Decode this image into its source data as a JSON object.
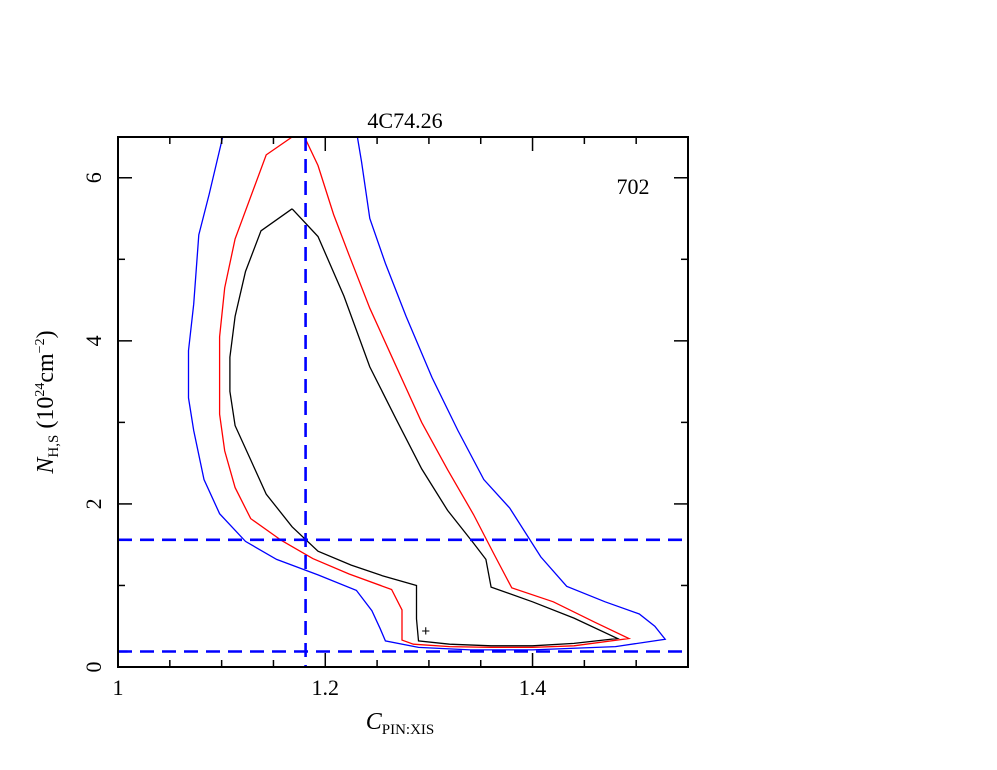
{
  "chart_data": {
    "type": "contour",
    "title": "4C74.26",
    "annotation": "702",
    "xlabel": {
      "main": "C",
      "sub": "PIN:XIS"
    },
    "ylabel": {
      "main": "N",
      "sub": "H,S",
      "rest_open": " (10",
      "sup1": "24",
      "rest_mid": "cm",
      "sup2": "−2",
      "rest_close": ")"
    },
    "xlim": [
      1.0,
      1.55
    ],
    "ylim": [
      0,
      6.5
    ],
    "xticks_major": [
      1.0,
      1.2,
      1.4
    ],
    "xtick_labels": [
      "1",
      "1.2",
      "1.4"
    ],
    "yticks_major": [
      0,
      2,
      4,
      6
    ],
    "ytick_labels": [
      "0",
      "2",
      "4",
      "6"
    ],
    "best_fit_marker": "+",
    "best_fit": {
      "x": 1.297,
      "y": 0.44
    },
    "reference_lines": {
      "color": "#0000ff",
      "vertical_x": [
        1.181
      ],
      "horizontal_y": [
        1.56,
        0.19
      ]
    },
    "series": [
      {
        "color": "#000000",
        "points": [
          [
            1.168,
            5.62
          ],
          [
            1.193,
            5.28
          ],
          [
            1.218,
            4.55
          ],
          [
            1.243,
            3.68
          ],
          [
            1.268,
            3.05
          ],
          [
            1.293,
            2.43
          ],
          [
            1.318,
            1.92
          ],
          [
            1.343,
            1.52
          ],
          [
            1.355,
            1.32
          ],
          [
            1.36,
            0.98
          ],
          [
            1.4,
            0.8
          ],
          [
            1.44,
            0.6
          ],
          [
            1.482,
            0.35
          ],
          [
            1.44,
            0.29
          ],
          [
            1.4,
            0.26
          ],
          [
            1.36,
            0.26
          ],
          [
            1.32,
            0.28
          ],
          [
            1.29,
            0.32
          ],
          [
            1.288,
            0.59
          ],
          [
            1.288,
            1.0
          ],
          [
            1.255,
            1.12
          ],
          [
            1.225,
            1.25
          ],
          [
            1.193,
            1.42
          ],
          [
            1.168,
            1.72
          ],
          [
            1.143,
            2.12
          ],
          [
            1.128,
            2.54
          ],
          [
            1.113,
            2.96
          ],
          [
            1.108,
            3.38
          ],
          [
            1.108,
            3.8
          ],
          [
            1.113,
            4.3
          ],
          [
            1.123,
            4.85
          ],
          [
            1.138,
            5.35
          ],
          [
            1.168,
            5.62
          ]
        ]
      },
      {
        "color": "#ff0000",
        "points": [
          [
            1.18,
            6.5
          ],
          [
            1.193,
            6.15
          ],
          [
            1.208,
            5.55
          ],
          [
            1.223,
            5.05
          ],
          [
            1.243,
            4.4
          ],
          [
            1.268,
            3.7
          ],
          [
            1.293,
            3.0
          ],
          [
            1.318,
            2.42
          ],
          [
            1.343,
            1.87
          ],
          [
            1.363,
            1.38
          ],
          [
            1.38,
            0.97
          ],
          [
            1.42,
            0.8
          ],
          [
            1.46,
            0.55
          ],
          [
            1.493,
            0.35
          ],
          [
            1.44,
            0.26
          ],
          [
            1.4,
            0.24
          ],
          [
            1.36,
            0.24
          ],
          [
            1.32,
            0.25
          ],
          [
            1.285,
            0.28
          ],
          [
            1.274,
            0.33
          ],
          [
            1.274,
            0.7
          ],
          [
            1.264,
            0.95
          ],
          [
            1.223,
            1.14
          ],
          [
            1.188,
            1.33
          ],
          [
            1.158,
            1.55
          ],
          [
            1.128,
            1.82
          ],
          [
            1.113,
            2.2
          ],
          [
            1.103,
            2.65
          ],
          [
            1.098,
            3.1
          ],
          [
            1.098,
            3.6
          ],
          [
            1.098,
            4.05
          ],
          [
            1.103,
            4.65
          ],
          [
            1.113,
            5.25
          ],
          [
            1.143,
            6.28
          ],
          [
            1.168,
            6.5
          ]
        ]
      },
      {
        "color": "#0000ff",
        "points": [
          [
            1.231,
            6.5
          ],
          [
            1.235,
            6.2
          ],
          [
            1.243,
            5.5
          ],
          [
            1.258,
            4.95
          ],
          [
            1.278,
            4.3
          ],
          [
            1.303,
            3.55
          ],
          [
            1.328,
            2.9
          ],
          [
            1.353,
            2.3
          ],
          [
            1.378,
            1.95
          ],
          [
            1.408,
            1.35
          ],
          [
            1.433,
            0.99
          ],
          [
            1.47,
            0.8
          ],
          [
            1.503,
            0.65
          ],
          [
            1.518,
            0.5
          ],
          [
            1.528,
            0.34
          ],
          [
            1.48,
            0.25
          ],
          [
            1.4,
            0.21
          ],
          [
            1.34,
            0.21
          ],
          [
            1.29,
            0.24
          ],
          [
            1.258,
            0.32
          ],
          [
            1.253,
            0.47
          ],
          [
            1.245,
            0.69
          ],
          [
            1.23,
            0.94
          ],
          [
            1.193,
            1.13
          ],
          [
            1.153,
            1.32
          ],
          [
            1.123,
            1.54
          ],
          [
            1.098,
            1.88
          ],
          [
            1.083,
            2.3
          ],
          [
            1.073,
            2.9
          ],
          [
            1.068,
            3.3
          ],
          [
            1.068,
            3.88
          ],
          [
            1.073,
            4.45
          ],
          [
            1.078,
            5.3
          ],
          [
            1.088,
            5.8
          ],
          [
            1.101,
            6.5
          ]
        ]
      }
    ]
  }
}
